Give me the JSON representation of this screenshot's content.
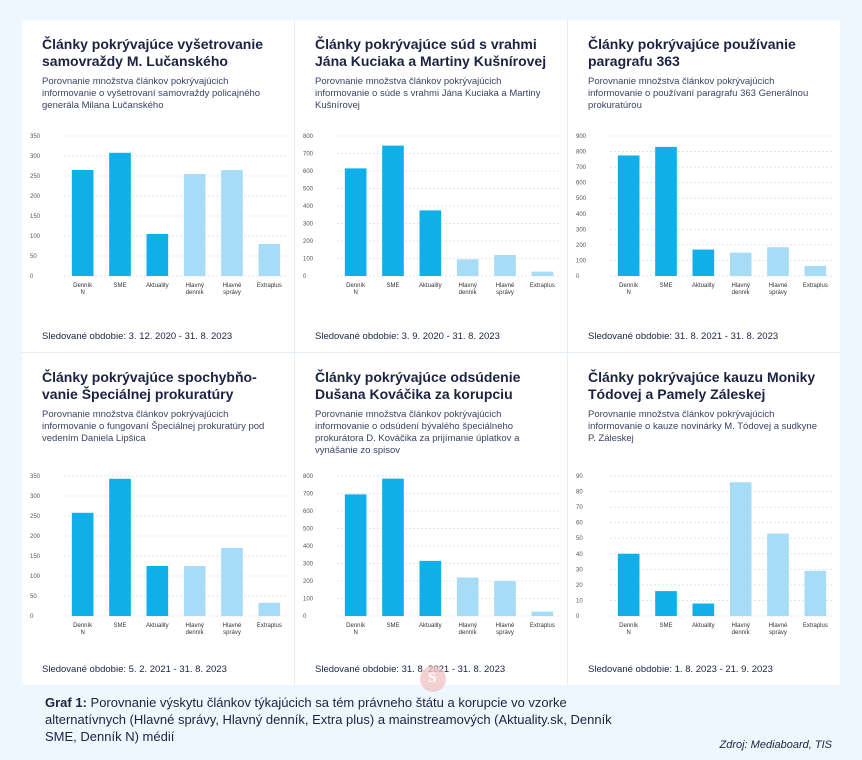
{
  "caption": {
    "label": "Graf 1:",
    "text": "Porovnanie výskytu článkov týkajúcich sa tém právneho štátu a korupcie vo vzorke alternatívnych (Hlavné správy, Hlavný denník, Extra plus) a mainstreamových (Aktuality.sk, Denník SME, Denník N) médií"
  },
  "source": "Zdroj: Mediaboard, TIS",
  "colors": {
    "dark": "#0fb0ea",
    "light": "#a7dcf7"
  },
  "chart_data": [
    {
      "type": "bar",
      "title": "Články pokrývajúce vyšetrovanie samovraždy M. Lučanského",
      "subtitle": "Porovnanie množstva článkov pokrývajúcich informovanie o vyšetrovaní samovraždy policajného generála Milana Lučanského",
      "period": "Sledované obdobie: 3. 12. 2020 - 31. 8. 2023",
      "categories": [
        "Denník N",
        "SME",
        "Aktuality",
        "Hlavný denník",
        "Hlavné správy",
        "Extraplus"
      ],
      "values": [
        265,
        308,
        105,
        255,
        265,
        80
      ],
      "ylim": [
        0,
        350
      ],
      "yticks": [
        0,
        50,
        100,
        150,
        200,
        250,
        300,
        350
      ]
    },
    {
      "type": "bar",
      "title": "Články pokrývajúce súd s vrahmi Jána Kuciaka a Martiny Kušnírovej",
      "subtitle": "Porovnanie množstva článkov pokrývajúcich informovanie o súde s vrahmi Jána Kuciaka a Martiny Kušnírovej",
      "period": "Sledované obdobie: 3. 9. 2020 - 31. 8. 2023",
      "categories": [
        "Denník N",
        "SME",
        "Aktuality",
        "Hlavný denník",
        "Hlavné správy",
        "Extraplus"
      ],
      "values": [
        615,
        745,
        375,
        95,
        120,
        25
      ],
      "ylim": [
        0,
        800
      ],
      "yticks": [
        0,
        100,
        200,
        300,
        400,
        500,
        600,
        700,
        800
      ]
    },
    {
      "type": "bar",
      "title": "Články pokrývajúce používanie paragrafu 363",
      "subtitle": "Porovnanie množstva článkov pokrývajúcich informovanie o používaní paragrafu 363 Generálnou prokuratúrou",
      "period": "Sledované obdobie: 31. 8. 2021 - 31. 8. 2023",
      "categories": [
        "Denník N",
        "SME",
        "Aktuality",
        "Hlavný denník",
        "Hlavné správy",
        "Extraplus"
      ],
      "values": [
        775,
        830,
        170,
        150,
        185,
        65
      ],
      "ylim": [
        0,
        900
      ],
      "yticks": [
        0,
        100,
        200,
        300,
        400,
        500,
        600,
        700,
        800,
        900
      ]
    },
    {
      "type": "bar",
      "title": "Články pokrývajúce spochybňo-vanie Špeciálnej prokuratúry",
      "subtitle": "Porovnanie množstva článkov pokrývajúcich informovanie o fungovaní Špeciálnej prokuratúry pod vedením Daniela Lipšica",
      "period": "Sledované obdobie: 5. 2. 2021 - 31. 8. 2023",
      "categories": [
        "Denník N",
        "SME",
        "Aktuality",
        "Hlavný denník",
        "Hlavné správy",
        "Extraplus"
      ],
      "values": [
        258,
        343,
        125,
        125,
        170,
        33
      ],
      "ylim": [
        0,
        350
      ],
      "yticks": [
        0,
        50,
        100,
        150,
        200,
        250,
        300,
        350
      ]
    },
    {
      "type": "bar",
      "title": "Články pokrývajúce odsúdenie Dušana Kováčika za korupciu",
      "subtitle": "Porovnanie množstva článkov pokrývajúcich informovanie o odsúdení bývalého špeciálneho prokurátora D. Kováčika za prijímanie úplatkov a vynášanie zo spisov",
      "period": "Sledované obdobie: 31. 8. 2021 - 31. 8. 2023",
      "categories": [
        "Denník N",
        "SME",
        "Aktuality",
        "Hlavný denník",
        "Hlavné správy",
        "Extraplus"
      ],
      "values": [
        695,
        785,
        315,
        220,
        200,
        25
      ],
      "ylim": [
        0,
        800
      ],
      "yticks": [
        0,
        100,
        200,
        300,
        400,
        500,
        600,
        700,
        800
      ]
    },
    {
      "type": "bar",
      "title": "Články pokrývajúce kauzu Moniky Tódovej a Pamely Záleskej",
      "subtitle": "Porovnanie množstva článkov pokrývajúcich informovanie o kauze novinárky M. Tódovej a sudkyne P. Záleskej",
      "period": "Sledované obdobie: 1. 8. 2023 - 21. 9. 2023",
      "categories": [
        "Denník N",
        "SME",
        "Aktuality",
        "Hlavný denník",
        "Hlavné správy",
        "Extraplus"
      ],
      "values": [
        40,
        16,
        8,
        86,
        53,
        29
      ],
      "ylim": [
        0,
        90
      ],
      "yticks": [
        0,
        10,
        20,
        30,
        40,
        50,
        60,
        70,
        80,
        90
      ]
    }
  ]
}
